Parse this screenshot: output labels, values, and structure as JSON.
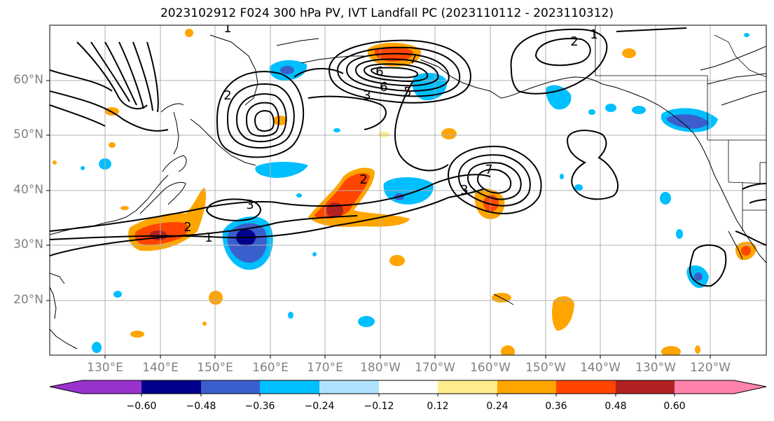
{
  "title": "2023102912 F024 300 hPa PV, IVT Landfall PC (2023110112 - 2023110312)",
  "lat_labels": [
    "60°N",
    "50°N",
    "40°N",
    "30°N",
    "20°N"
  ],
  "lon_labels": [
    "130°E",
    "140°E",
    "150°E",
    "160°E",
    "170°E",
    "180°W",
    "170°W",
    "160°W",
    "150°W",
    "140°W",
    "130°W",
    "120°W"
  ],
  "colorbar": {
    "ticks": [
      "−0.60",
      "−0.48",
      "−0.36",
      "−0.24",
      "−0.12",
      "0.12",
      "0.24",
      "0.36",
      "0.48",
      "0.60"
    ],
    "colors": [
      "#9932cc",
      "#00008b",
      "#3a5fcd",
      "#00bfff",
      "#b0e2ff",
      "#ffffff",
      "#ffec8b",
      "#ffa500",
      "#ff4500",
      "#b22222",
      "#ff82ab"
    ]
  },
  "contour_labels": [
    "1",
    "2",
    "2",
    "2",
    "3",
    "3",
    "3",
    "5",
    "6",
    "6",
    "7",
    "7",
    "1",
    "1",
    "2"
  ]
}
